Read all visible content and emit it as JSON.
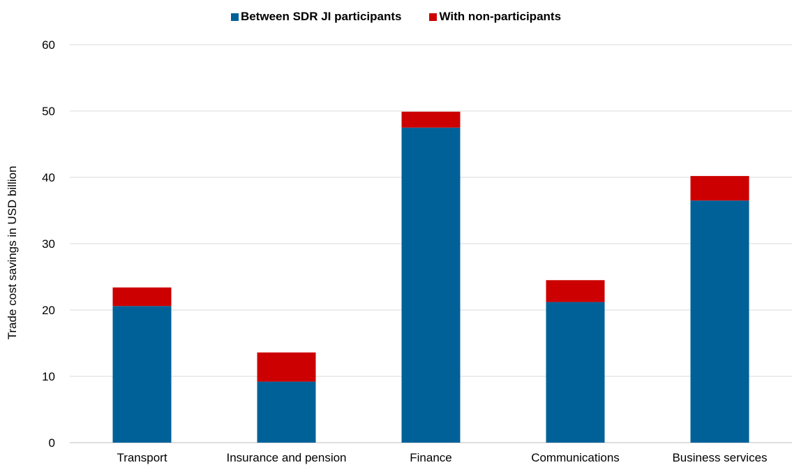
{
  "chart_data": {
    "type": "bar",
    "stacked": true,
    "categories": [
      "Transport",
      "Insurance and pension",
      "Finance",
      "Communications",
      "Business services"
    ],
    "series": [
      {
        "name": "Between SDR JI participants",
        "color": "#006199",
        "values": [
          20.6,
          9.2,
          47.5,
          21.2,
          36.5
        ]
      },
      {
        "name": "With non-participants",
        "color": "#cc0000",
        "values": [
          2.8,
          4.4,
          2.4,
          3.3,
          3.7
        ]
      }
    ],
    "title": "",
    "xlabel": "",
    "ylabel": "Trade cost savings in USD billion",
    "ylim": [
      0,
      60
    ],
    "yticks": [
      0,
      10,
      20,
      30,
      40,
      50,
      60
    ],
    "grid": true,
    "legend_position": "top"
  }
}
